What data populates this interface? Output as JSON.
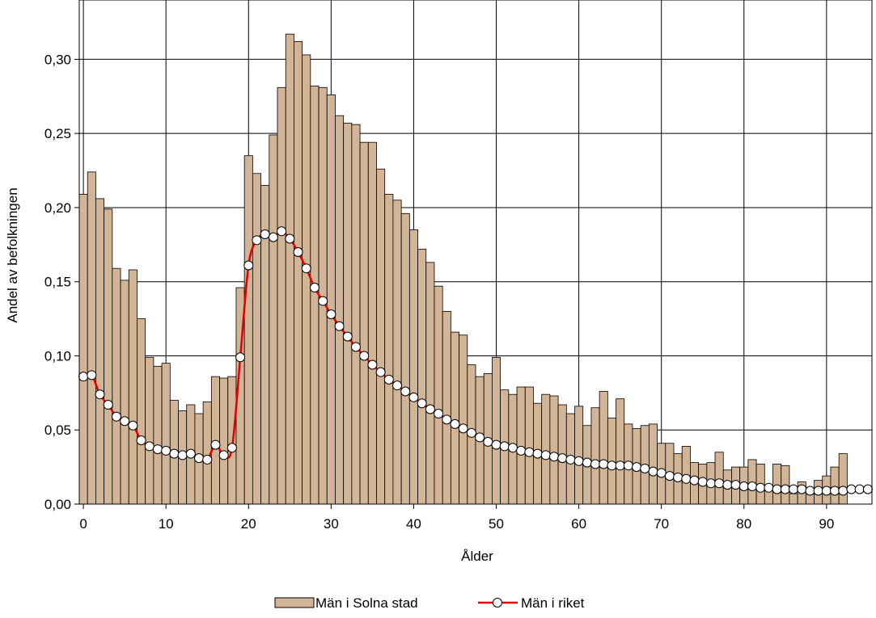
{
  "chart_data": {
    "type": "bar",
    "title": "",
    "xlabel": "Ålder",
    "ylabel": "Andel av befolkningen",
    "xlim": [
      -0.5,
      95.5
    ],
    "ylim": [
      0,
      0.34
    ],
    "x_ticks": [
      0,
      10,
      20,
      30,
      40,
      50,
      60,
      70,
      80,
      90
    ],
    "x_tick_labels": [
      "0",
      "10",
      "20",
      "30",
      "40",
      "50",
      "60",
      "70",
      "80",
      "90"
    ],
    "y_ticks": [
      0,
      0.05,
      0.1,
      0.15,
      0.2,
      0.25,
      0.3
    ],
    "y_tick_labels": [
      "0,00",
      "0,05",
      "0,10",
      "0,15",
      "0,20",
      "0,25",
      "0,30"
    ],
    "grid": true,
    "legend_position": "bottom",
    "series": [
      {
        "name": "Män i Solna stad",
        "kind": "bar",
        "color": "#D2B496",
        "x": [
          0,
          1,
          2,
          3,
          4,
          5,
          6,
          7,
          8,
          9,
          10,
          11,
          12,
          13,
          14,
          15,
          16,
          17,
          18,
          19,
          20,
          21,
          22,
          23,
          24,
          25,
          26,
          27,
          28,
          29,
          30,
          31,
          32,
          33,
          34,
          35,
          36,
          37,
          38,
          39,
          40,
          41,
          42,
          43,
          44,
          45,
          46,
          47,
          48,
          49,
          50,
          51,
          52,
          53,
          54,
          55,
          56,
          57,
          58,
          59,
          60,
          61,
          62,
          63,
          64,
          65,
          66,
          67,
          68,
          69,
          70,
          71,
          72,
          73,
          74,
          75,
          76,
          77,
          78,
          79,
          80,
          81,
          82,
          83,
          84,
          85,
          86,
          87,
          88,
          89,
          90,
          91,
          92
        ],
        "values": [
          0.209,
          0.224,
          0.206,
          0.199,
          0.159,
          0.151,
          0.158,
          0.125,
          0.099,
          0.093,
          0.095,
          0.07,
          0.063,
          0.067,
          0.061,
          0.069,
          0.086,
          0.085,
          0.086,
          0.146,
          0.235,
          0.223,
          0.215,
          0.249,
          0.281,
          0.317,
          0.312,
          0.303,
          0.282,
          0.281,
          0.276,
          0.262,
          0.257,
          0.256,
          0.244,
          0.244,
          0.226,
          0.209,
          0.205,
          0.196,
          0.185,
          0.172,
          0.163,
          0.147,
          0.13,
          0.116,
          0.114,
          0.094,
          0.086,
          0.088,
          0.099,
          0.077,
          0.074,
          0.079,
          0.079,
          0.068,
          0.074,
          0.073,
          0.067,
          0.061,
          0.066,
          0.053,
          0.065,
          0.076,
          0.058,
          0.071,
          0.054,
          0.051,
          0.053,
          0.054,
          0.041,
          0.041,
          0.034,
          0.039,
          0.028,
          0.027,
          0.028,
          0.035,
          0.023,
          0.025,
          0.025,
          0.03,
          0.027,
          0.009,
          0.027,
          0.026,
          0.007,
          0.015,
          0.007,
          0.016,
          0.019,
          0.025,
          0.034
        ]
      },
      {
        "name": "Män i riket",
        "kind": "line",
        "color": "#E00000",
        "marker": "circle-white",
        "x": [
          0,
          1,
          2,
          3,
          4,
          5,
          6,
          7,
          8,
          9,
          10,
          11,
          12,
          13,
          14,
          15,
          16,
          17,
          18,
          19,
          20,
          21,
          22,
          23,
          24,
          25,
          26,
          27,
          28,
          29,
          30,
          31,
          32,
          33,
          34,
          35,
          36,
          37,
          38,
          39,
          40,
          41,
          42,
          43,
          44,
          45,
          46,
          47,
          48,
          49,
          50,
          51,
          52,
          53,
          54,
          55,
          56,
          57,
          58,
          59,
          60,
          61,
          62,
          63,
          64,
          65,
          66,
          67,
          68,
          69,
          70,
          71,
          72,
          73,
          74,
          75,
          76,
          77,
          78,
          79,
          80,
          81,
          82,
          83,
          84,
          85,
          86,
          87,
          88,
          89,
          90,
          91,
          92,
          93,
          94,
          95
        ],
        "values": [
          0.086,
          0.087,
          0.074,
          0.067,
          0.059,
          0.056,
          0.053,
          0.043,
          0.039,
          0.037,
          0.036,
          0.034,
          0.033,
          0.034,
          0.031,
          0.03,
          0.04,
          0.033,
          0.038,
          0.099,
          0.161,
          0.178,
          0.182,
          0.18,
          0.184,
          0.179,
          0.17,
          0.159,
          0.146,
          0.137,
          0.128,
          0.12,
          0.113,
          0.106,
          0.1,
          0.094,
          0.089,
          0.084,
          0.08,
          0.076,
          0.072,
          0.068,
          0.064,
          0.061,
          0.057,
          0.054,
          0.051,
          0.048,
          0.045,
          0.042,
          0.04,
          0.039,
          0.038,
          0.036,
          0.035,
          0.034,
          0.033,
          0.032,
          0.031,
          0.03,
          0.029,
          0.028,
          0.027,
          0.027,
          0.026,
          0.026,
          0.026,
          0.025,
          0.024,
          0.022,
          0.021,
          0.019,
          0.018,
          0.017,
          0.016,
          0.015,
          0.014,
          0.014,
          0.013,
          0.013,
          0.012,
          0.012,
          0.011,
          0.011,
          0.01,
          0.01,
          0.01,
          0.01,
          0.009,
          0.009,
          0.009,
          0.009,
          0.009,
          0.01,
          0.01,
          0.01
        ]
      }
    ]
  }
}
